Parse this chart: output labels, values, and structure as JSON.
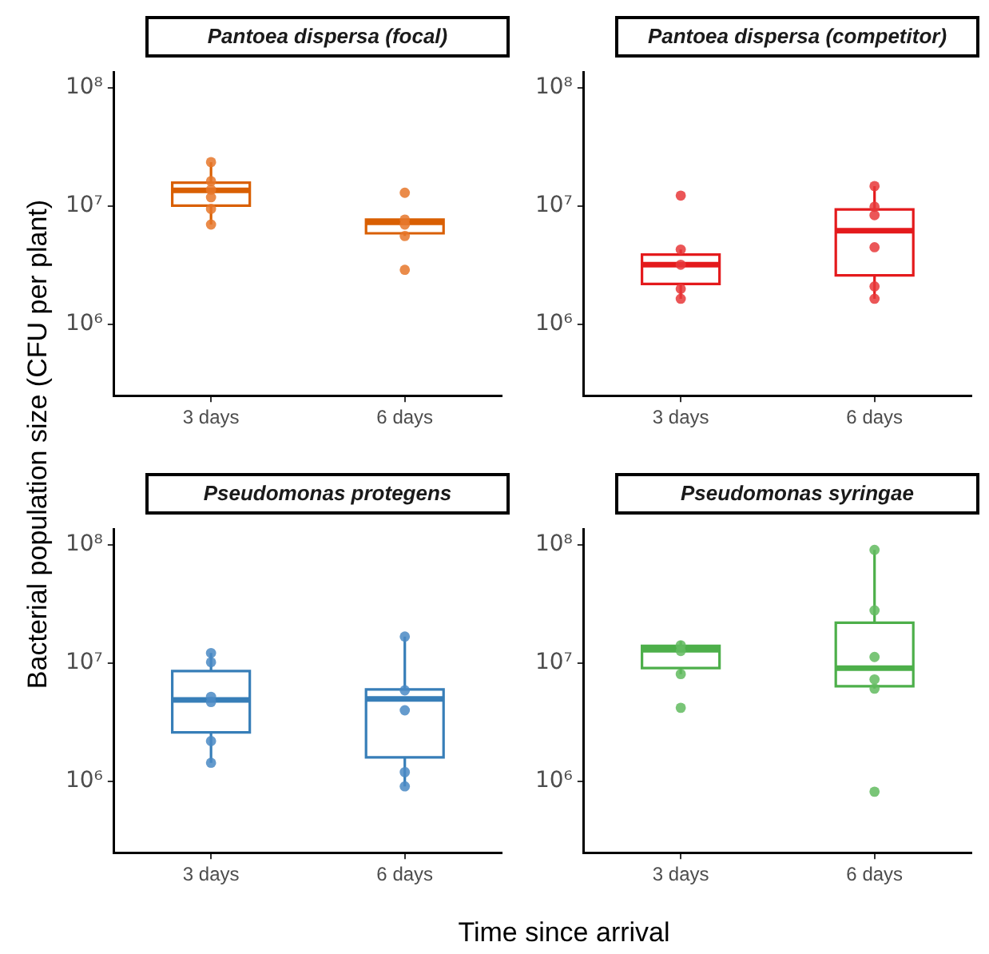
{
  "chart_data": [
    {
      "type": "box",
      "title": "Pantoea dispersa (focal)",
      "ylabel": "Bacterial population size (CFU per plant)",
      "xlabel": "Time since arrival",
      "categories": [
        "3 days",
        "6 days"
      ],
      "color": "#d95f02",
      "log": true,
      "ylim": [
        250000,
        135000000
      ],
      "yticks": [
        {
          "value": 1000000,
          "label": "10⁶"
        },
        {
          "value": 10000000,
          "label": "10⁷"
        },
        {
          "value": 100000000,
          "label": "10⁸"
        }
      ],
      "marker": "circle",
      "boxes": [
        {
          "low": 7000000,
          "q1": 10100000,
          "median": 13600000,
          "q3": 15800000,
          "high": 23600000
        },
        {
          "low": 5600000,
          "q1": 5900000,
          "median": 7300000,
          "q3": 7700000,
          "high": 7700000
        }
      ],
      "series": [
        {
          "type": "scatter",
          "color": "#e6772a",
          "x": [
            "3 days",
            "3 days",
            "3 days",
            "3 days",
            "3 days",
            "3 days",
            "6 days",
            "6 days",
            "6 days",
            "6 days",
            "6 days"
          ],
          "values": [
            23600000,
            16300000,
            13800000,
            11900000,
            9500000,
            7000000,
            13000000,
            7700000,
            7000000,
            5600000,
            2900000
          ]
        }
      ]
    },
    {
      "type": "box",
      "title": "Pantoea dispersa (competitor)",
      "categories": [
        "3 days",
        "6 days"
      ],
      "color": "#e41a1c",
      "log": true,
      "ylim": [
        250000,
        135000000
      ],
      "yticks": [
        {
          "value": 1000000,
          "label": "10⁶"
        },
        {
          "value": 10000000,
          "label": "10⁷"
        },
        {
          "value": 100000000,
          "label": "10⁸"
        }
      ],
      "marker": "circle",
      "boxes": [
        {
          "low": 1650000,
          "q1": 2200000,
          "median": 3200000,
          "q3": 3900000,
          "high": 4300000
        },
        {
          "low": 1650000,
          "q1": 2600000,
          "median": 6200000,
          "q3": 9400000,
          "high": 14800000
        }
      ],
      "series": [
        {
          "type": "scatter",
          "color": "#e8383a",
          "x": [
            "3 days",
            "3 days",
            "3 days",
            "3 days",
            "3 days",
            "6 days",
            "6 days",
            "6 days",
            "6 days",
            "6 days",
            "6 days"
          ],
          "values": [
            12300000,
            4300000,
            3200000,
            2000000,
            1650000,
            14800000,
            9900000,
            8400000,
            4500000,
            2100000,
            1650000
          ]
        }
      ]
    },
    {
      "type": "box",
      "title": "Pseudomonas protegens",
      "categories": [
        "3 days",
        "6 days"
      ],
      "color": "#377eb8",
      "log": true,
      "ylim": [
        250000,
        135000000
      ],
      "yticks": [
        {
          "value": 1000000,
          "label": "10⁶"
        },
        {
          "value": 10000000,
          "label": "10⁷"
        },
        {
          "value": 100000000,
          "label": "10⁸"
        }
      ],
      "marker": "circle",
      "boxes": [
        {
          "low": 1440000,
          "q1": 2600000,
          "median": 4900000,
          "q3": 8600000,
          "high": 12200000
        },
        {
          "low": 910000,
          "q1": 1600000,
          "median": 5000000,
          "q3": 6000000,
          "high": 16800000
        }
      ],
      "series": [
        {
          "type": "scatter",
          "color": "#4a8ac4",
          "x": [
            "3 days",
            "3 days",
            "3 days",
            "3 days",
            "3 days",
            "3 days",
            "6 days",
            "6 days",
            "6 days",
            "6 days",
            "6 days"
          ],
          "values": [
            12200000,
            10200000,
            5200000,
            4700000,
            2200000,
            1440000,
            16800000,
            5900000,
            4000000,
            1200000,
            910000
          ]
        }
      ]
    },
    {
      "type": "box",
      "title": "Pseudomonas syringae",
      "categories": [
        "3 days",
        "6 days"
      ],
      "color": "#4daf4a",
      "log": true,
      "ylim": [
        250000,
        135000000
      ],
      "yticks": [
        {
          "value": 1000000,
          "label": "10⁶"
        },
        {
          "value": 10000000,
          "label": "10⁷"
        },
        {
          "value": 100000000,
          "label": "10⁸"
        }
      ],
      "marker": "circle",
      "boxes": [
        {
          "low": 8100000,
          "q1": 9100000,
          "median": 13000000,
          "q3": 14000000,
          "high": 15400000
        },
        {
          "low": 6100000,
          "q1": 6400000,
          "median": 9100000,
          "q3": 22000000,
          "high": 91000000
        }
      ],
      "series": [
        {
          "type": "scatter",
          "color": "#62bb5f",
          "x": [
            "3 days",
            "3 days",
            "3 days",
            "3 days",
            "3 days",
            "6 days",
            "6 days",
            "6 days",
            "6 days",
            "6 days",
            "6 days"
          ],
          "values": [
            null,
            14200000,
            12700000,
            8100000,
            4200000,
            91000000,
            28000000,
            11300000,
            7300000,
            6100000,
            820000
          ]
        }
      ]
    }
  ]
}
